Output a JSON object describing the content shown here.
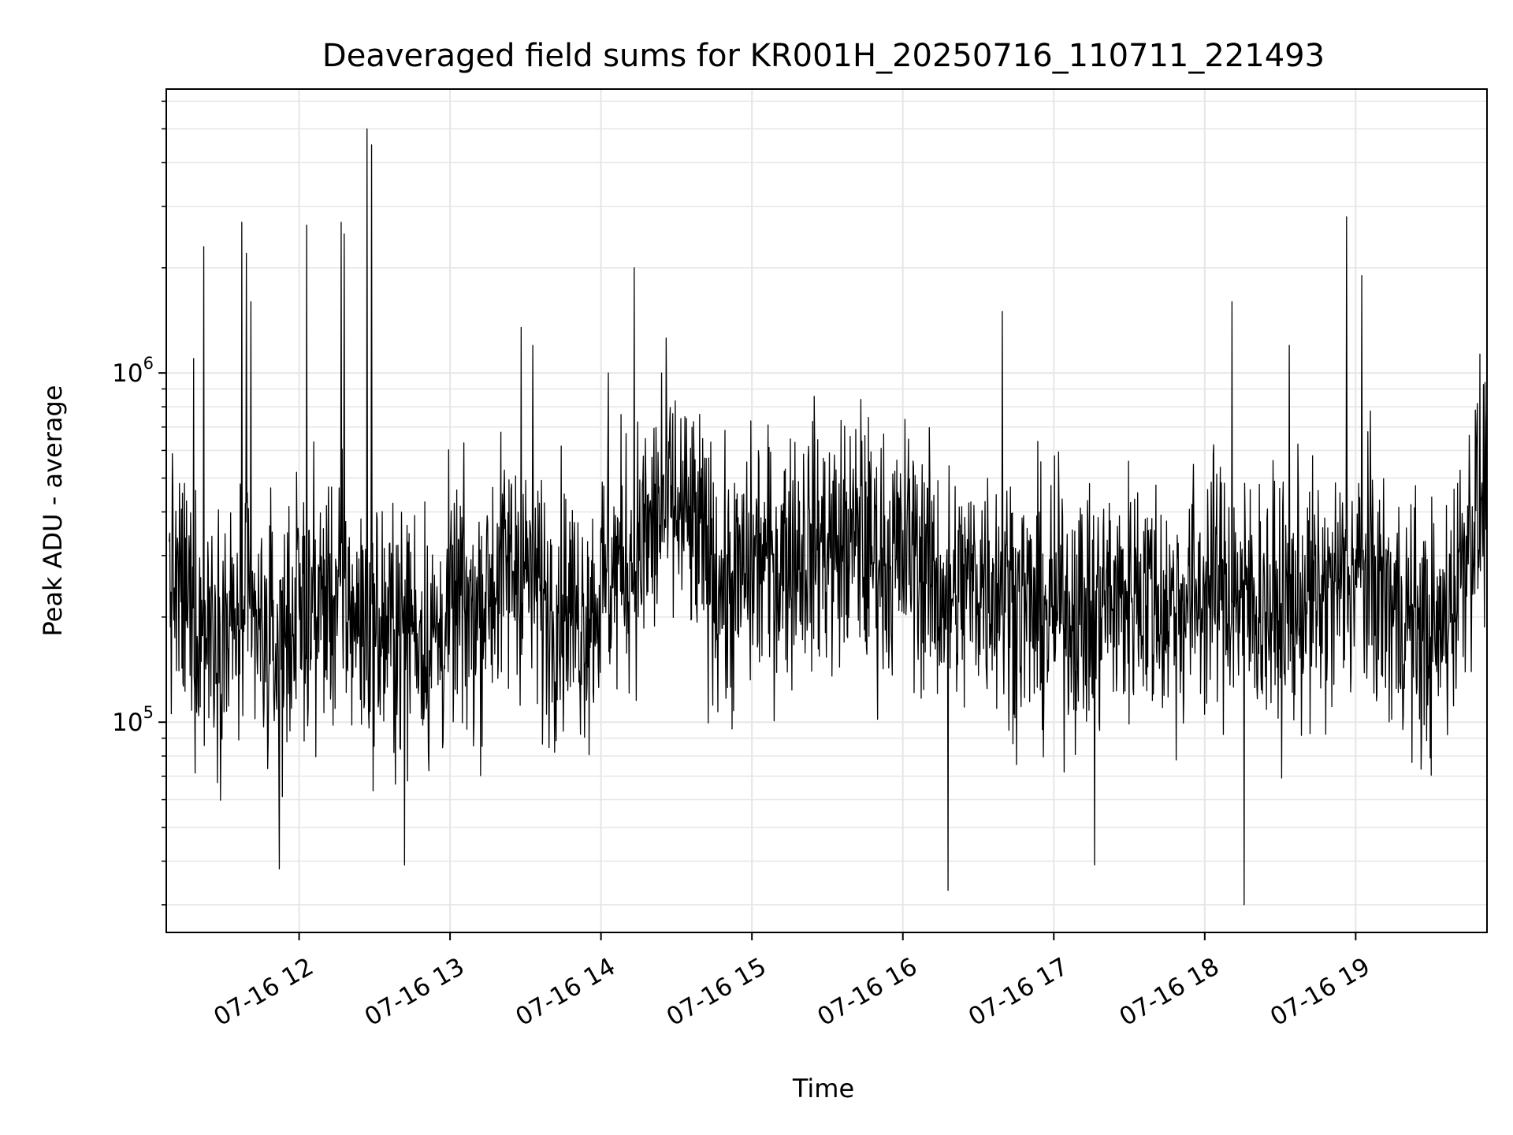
{
  "chart_data": {
    "type": "line",
    "title": "Deaveraged field sums for KR001H_20250716_110711_221493",
    "xlabel": "Time",
    "ylabel": "Peak ADU - average",
    "yscale": "log",
    "ylim": [
      25000,
      6500000
    ],
    "xlim_hours": [
      11.12,
      19.87
    ],
    "grid": true,
    "line_color": "#000000",
    "grid_color": "#e6e6e6",
    "x_ticks": [
      {
        "hour": 12,
        "label": "07-16 12"
      },
      {
        "hour": 13,
        "label": "07-16 13"
      },
      {
        "hour": 14,
        "label": "07-16 14"
      },
      {
        "hour": 15,
        "label": "07-16 15"
      },
      {
        "hour": 16,
        "label": "07-16 16"
      },
      {
        "hour": 17,
        "label": "07-16 17"
      },
      {
        "hour": 18,
        "label": "07-16 18"
      },
      {
        "hour": 19,
        "label": "07-16 19"
      }
    ],
    "y_ticks": [
      {
        "value": 100000,
        "base": "10",
        "exp": "5"
      },
      {
        "value": 1000000,
        "base": "10",
        "exp": "6"
      }
    ],
    "series": [
      {
        "x": [
          11.15,
          11.25,
          11.35,
          11.45,
          11.55,
          11.65,
          11.75,
          11.85,
          11.95,
          12.05,
          12.15,
          12.25,
          12.35,
          12.45,
          12.55,
          12.65,
          12.75,
          12.85,
          12.95,
          13.05,
          13.15,
          13.25,
          13.35,
          13.45,
          13.55,
          13.65,
          13.75,
          13.85,
          13.95,
          14.05,
          14.15,
          14.25,
          14.35,
          14.45,
          14.55,
          14.65,
          14.75,
          14.85,
          14.95,
          15.05,
          15.15,
          15.25,
          15.35,
          15.45,
          15.55,
          15.65,
          15.75,
          15.85,
          15.95,
          16.05,
          16.15,
          16.25,
          16.35,
          16.45,
          16.55,
          16.65,
          16.75,
          16.85,
          16.95,
          17.05,
          17.15,
          17.25,
          17.35,
          17.45,
          17.55,
          17.65,
          17.75,
          17.85,
          17.95,
          18.05,
          18.15,
          18.25,
          18.35,
          18.45,
          18.55,
          18.65,
          18.75,
          18.85,
          18.95,
          19.05,
          19.15,
          19.25,
          19.35,
          19.45,
          19.55,
          19.65,
          19.75,
          19.85
        ],
        "y": [
          250000,
          220000,
          190000,
          200000,
          180000,
          210000,
          170000,
          160000,
          200000,
          210000,
          220000,
          230000,
          210000,
          190000,
          180000,
          190000,
          200000,
          170000,
          180000,
          220000,
          200000,
          240000,
          270000,
          290000,
          260000,
          210000,
          230000,
          200000,
          220000,
          260000,
          290000,
          310000,
          360000,
          420000,
          380000,
          330000,
          270000,
          230000,
          260000,
          300000,
          280000,
          310000,
          320000,
          330000,
          310000,
          330000,
          310000,
          300000,
          290000,
          320000,
          280000,
          240000,
          230000,
          250000,
          260000,
          250000,
          230000,
          210000,
          200000,
          220000,
          210000,
          200000,
          230000,
          220000,
          250000,
          230000,
          210000,
          220000,
          230000,
          250000,
          240000,
          230000,
          220000,
          210000,
          200000,
          230000,
          220000,
          230000,
          260000,
          270000,
          240000,
          210000,
          200000,
          180000,
          170000,
          240000,
          360000,
          450000
        ]
      }
    ],
    "spikes": [
      {
        "x": 11.3,
        "y": 1100000
      },
      {
        "x": 11.37,
        "y": 2300000
      },
      {
        "x": 11.62,
        "y": 2700000
      },
      {
        "x": 11.65,
        "y": 2200000
      },
      {
        "x": 11.68,
        "y": 1600000
      },
      {
        "x": 11.87,
        "y": 38000
      },
      {
        "x": 12.05,
        "y": 2650000
      },
      {
        "x": 12.28,
        "y": 2700000
      },
      {
        "x": 12.3,
        "y": 2500000
      },
      {
        "x": 12.45,
        "y": 5000000
      },
      {
        "x": 12.48,
        "y": 4500000
      },
      {
        "x": 12.7,
        "y": 39000
      },
      {
        "x": 13.47,
        "y": 1350000
      },
      {
        "x": 13.55,
        "y": 1200000
      },
      {
        "x": 14.05,
        "y": 1000000
      },
      {
        "x": 14.22,
        "y": 2000000
      },
      {
        "x": 14.4,
        "y": 1000000
      },
      {
        "x": 15.72,
        "y": 840000
      },
      {
        "x": 16.3,
        "y": 33000
      },
      {
        "x": 16.66,
        "y": 1500000
      },
      {
        "x": 17.27,
        "y": 39000
      },
      {
        "x": 18.18,
        "y": 1600000
      },
      {
        "x": 18.26,
        "y": 30000
      },
      {
        "x": 18.56,
        "y": 1200000
      },
      {
        "x": 18.94,
        "y": 2800000
      },
      {
        "x": 19.04,
        "y": 1900000
      }
    ]
  }
}
